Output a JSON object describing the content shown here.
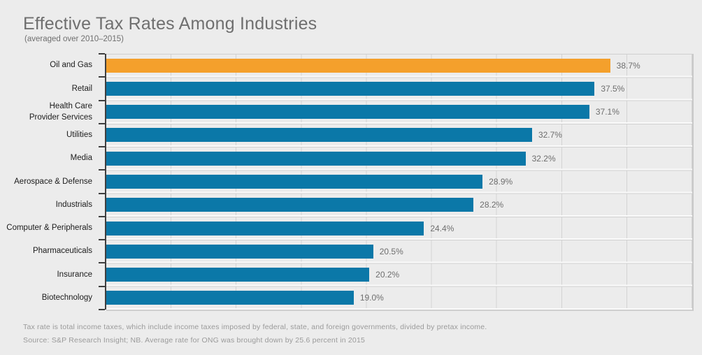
{
  "header": {
    "title": "Effective Tax Rates Among Industries",
    "subtitle": "(averaged over 2010–2015)"
  },
  "footer": {
    "footnote": "Tax rate is total income taxes, which include income taxes imposed by federal, state, and foreign governments, divided by pretax income.",
    "source": "Source: S&P Research Insight; NB. Average rate for ONG was brought down by 25.6 percent in 2015"
  },
  "colors": {
    "bar": "#0B78A8",
    "highlight_bar": "#F4A02C",
    "axis": "#3F3F3F",
    "gridline": "#D3D3D3",
    "background": "#ECECEC",
    "title_text": "#6F6F6F",
    "value_text": "#6E6E6E",
    "footnote_text": "#9A9A9A"
  },
  "chart_data": {
    "type": "bar",
    "orientation": "horizontal",
    "title": "Effective Tax Rates Among Industries",
    "subtitle": "(averaged over 2010–2015)",
    "categories": [
      "Oil and Gas",
      "Retail",
      "Health Care\nProvider Services",
      "Utilities",
      "Media",
      "Aerospace & Defense",
      "Industrials",
      "Computer & Peripherals",
      "Pharmaceuticals",
      "Insurance",
      "Biotechnology"
    ],
    "values": [
      38.7,
      37.5,
      37.1,
      32.7,
      32.2,
      28.9,
      28.2,
      24.4,
      20.5,
      20.2,
      19.0
    ],
    "value_labels": [
      "38.7%",
      "37.5%",
      "37.1%",
      "32.7%",
      "32.2%",
      "28.9%",
      "28.2%",
      "24.4%",
      "20.5%",
      "20.2%",
      "19.0%"
    ],
    "highlight_index": 0,
    "xlim": [
      0,
      45
    ],
    "gridline_interval": 5,
    "xlabel": "",
    "ylabel": "",
    "legend": "none",
    "grid": "vertical-major-only",
    "value_suffix": "%"
  }
}
